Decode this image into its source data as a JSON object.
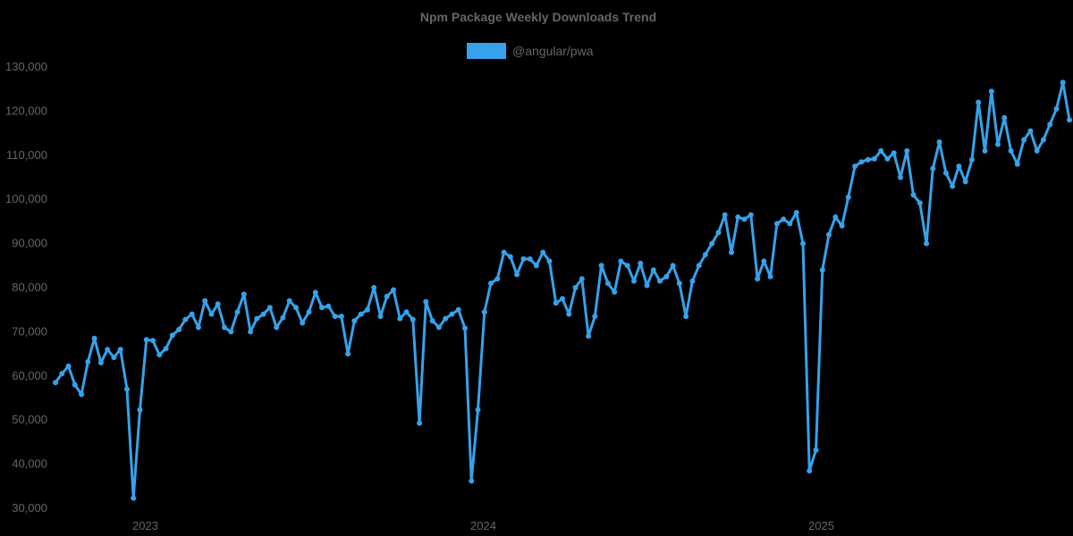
{
  "chart_data": {
    "type": "line",
    "title": "Npm Package Weekly Downloads Trend",
    "xlabel": "",
    "ylabel": "",
    "ylim": [
      30000,
      130000
    ],
    "yticks": [
      30000,
      40000,
      50000,
      60000,
      70000,
      80000,
      90000,
      100000,
      110000,
      120000,
      130000
    ],
    "ytick_labels": [
      "30,000",
      "40,000",
      "50,000",
      "60,000",
      "70,000",
      "80,000",
      "90,000",
      "100,000",
      "110,000",
      "120,000",
      "130,000"
    ],
    "xtick_labels": [
      {
        "label": "2023",
        "index": 13
      },
      {
        "label": "2024",
        "index": 65
      },
      {
        "label": "2025",
        "index": 117
      }
    ],
    "grid": false,
    "legend_position": "top-center",
    "series": [
      {
        "name": "@angular/pwa",
        "color": "#36a2eb",
        "values": [
          58500,
          60500,
          62200,
          58000,
          55800,
          63200,
          68500,
          63000,
          66000,
          64200,
          66000,
          57000,
          32300,
          52300,
          68200,
          68000,
          64800,
          66200,
          69200,
          70500,
          72800,
          74000,
          71000,
          77000,
          74000,
          76300,
          71000,
          70000,
          74500,
          78500,
          70000,
          73000,
          74000,
          75500,
          71000,
          73200,
          77000,
          75500,
          72000,
          74500,
          78900,
          75500,
          75800,
          73500,
          73500,
          65000,
          72500,
          74000,
          75000,
          80000,
          73500,
          78000,
          79500,
          73000,
          74500,
          72800,
          49300,
          76800,
          72500,
          71000,
          73000,
          74000,
          75000,
          70800,
          36200,
          52300,
          74500,
          81000,
          82000,
          88000,
          87000,
          83000,
          86500,
          86500,
          85000,
          88000,
          86000,
          76500,
          77500,
          74000,
          80000,
          82000,
          69000,
          73500,
          85000,
          81000,
          79000,
          86000,
          85000,
          81500,
          85500,
          80500,
          84000,
          81500,
          82500,
          85000,
          81000,
          73500,
          81500,
          85000,
          87500,
          90000,
          92500,
          96500,
          88000,
          96000,
          95500,
          96500,
          82000,
          86000,
          82500,
          94500,
          95500,
          94500,
          97000,
          90000,
          38500,
          43200,
          84000,
          92000,
          96000,
          94000,
          100500,
          107500,
          108500,
          109000,
          109200,
          111000,
          109200,
          110500,
          105000,
          111000,
          101000,
          99200,
          90000,
          107000,
          113000,
          106000,
          103000,
          107500,
          104000,
          109000,
          122000,
          111000,
          124500,
          112500,
          118500,
          111000,
          108000,
          113500,
          115500,
          111000,
          113500,
          117000,
          120500,
          126500,
          118000
        ]
      }
    ]
  },
  "header": {
    "title": "Npm Package Weekly Downloads Trend"
  },
  "legend": {
    "items": [
      {
        "label": "@angular/pwa",
        "color": "#36a2eb"
      }
    ]
  }
}
